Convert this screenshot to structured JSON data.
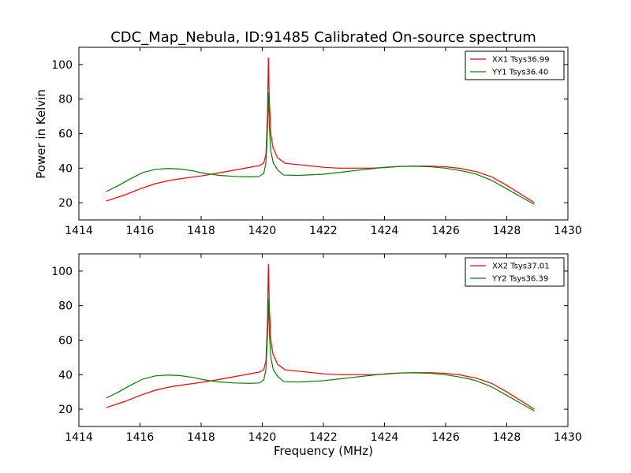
{
  "figure": {
    "title": "CDC_Map_Nebula, ID:91485 Calibrated On-source spectrum",
    "xlabel": "Frequency (MHz)",
    "ylabel": "Power in Kelvin"
  },
  "chart_data": [
    {
      "type": "line",
      "xlim": [
        1414,
        1430
      ],
      "ylim": [
        10,
        110
      ],
      "xticks": [
        1414,
        1416,
        1418,
        1420,
        1422,
        1424,
        1426,
        1428,
        1430
      ],
      "yticks": [
        20,
        40,
        60,
        80,
        100
      ],
      "grid": false,
      "legend": "top-right",
      "series": [
        {
          "name": "XX1 Tsys36.99",
          "color": "#ff0000",
          "points": [
            [
              1414.9,
              21
            ],
            [
              1415.5,
              24.5
            ],
            [
              1416,
              28
            ],
            [
              1416.5,
              31
            ],
            [
              1417,
              33
            ],
            [
              1417.5,
              34.3
            ],
            [
              1418,
              35.5
            ],
            [
              1418.5,
              37
            ],
            [
              1419,
              38.6
            ],
            [
              1419.5,
              40.2
            ],
            [
              1419.9,
              41.5
            ],
            [
              1420.05,
              43
            ],
            [
              1420.12,
              48
            ],
            [
              1420.17,
              70
            ],
            [
              1420.2,
              104
            ],
            [
              1420.23,
              80
            ],
            [
              1420.28,
              60
            ],
            [
              1420.35,
              52
            ],
            [
              1420.5,
              46
            ],
            [
              1420.75,
              42.8
            ],
            [
              1421.2,
              42
            ],
            [
              1422,
              40.5
            ],
            [
              1422.5,
              40
            ],
            [
              1423.5,
              40
            ],
            [
              1424,
              40.3
            ],
            [
              1424.5,
              41
            ],
            [
              1425,
              41.2
            ],
            [
              1425.5,
              41.2
            ],
            [
              1426,
              40.8
            ],
            [
              1426.5,
              39.8
            ],
            [
              1426.7,
              39
            ],
            [
              1427,
              38
            ],
            [
              1427.5,
              35
            ],
            [
              1428,
              30
            ],
            [
              1428.5,
              24.5
            ],
            [
              1428.9,
              20
            ]
          ]
        },
        {
          "name": "YY1 Tsys36.40",
          "color": "#008000",
          "points": [
            [
              1414.9,
              26.5
            ],
            [
              1415.3,
              30
            ],
            [
              1415.7,
              34
            ],
            [
              1416.1,
              37.5
            ],
            [
              1416.5,
              39.3
            ],
            [
              1416.9,
              39.8
            ],
            [
              1417.3,
              39.5
            ],
            [
              1417.7,
              38.5
            ],
            [
              1418.1,
              37
            ],
            [
              1418.6,
              35.8
            ],
            [
              1419.1,
              35.2
            ],
            [
              1419.6,
              35
            ],
            [
              1419.9,
              35.2
            ],
            [
              1420.05,
              37
            ],
            [
              1420.12,
              43
            ],
            [
              1420.17,
              62
            ],
            [
              1420.2,
              84
            ],
            [
              1420.23,
              65
            ],
            [
              1420.28,
              50
            ],
            [
              1420.36,
              43
            ],
            [
              1420.5,
              39
            ],
            [
              1420.7,
              36
            ],
            [
              1421.2,
              35.8
            ],
            [
              1422,
              36.5
            ],
            [
              1422.5,
              37.5
            ],
            [
              1423,
              38.5
            ],
            [
              1423.5,
              39.5
            ],
            [
              1424,
              40.5
            ],
            [
              1424.5,
              41
            ],
            [
              1425,
              41.1
            ],
            [
              1425.5,
              40.8
            ],
            [
              1426,
              40
            ],
            [
              1426.5,
              38.5
            ],
            [
              1426.7,
              37.8
            ],
            [
              1427,
              36.5
            ],
            [
              1427.5,
              33
            ],
            [
              1428,
              28
            ],
            [
              1428.5,
              23
            ],
            [
              1428.9,
              19
            ]
          ]
        }
      ]
    },
    {
      "type": "line",
      "xlim": [
        1414,
        1430
      ],
      "ylim": [
        10,
        110
      ],
      "xticks": [
        1414,
        1416,
        1418,
        1420,
        1422,
        1424,
        1426,
        1428,
        1430
      ],
      "yticks": [
        20,
        40,
        60,
        80,
        100
      ],
      "grid": false,
      "legend": "top-right",
      "series": [
        {
          "name": "XX2 Tsys37.01",
          "color": "#ff0000",
          "points": [
            [
              1414.9,
              21
            ],
            [
              1415.5,
              24.5
            ],
            [
              1416,
              28
            ],
            [
              1416.5,
              31
            ],
            [
              1417,
              33
            ],
            [
              1417.5,
              34.3
            ],
            [
              1418,
              35.5
            ],
            [
              1418.5,
              37
            ],
            [
              1419,
              38.6
            ],
            [
              1419.5,
              40.2
            ],
            [
              1419.9,
              41.5
            ],
            [
              1420.05,
              43
            ],
            [
              1420.12,
              48
            ],
            [
              1420.17,
              70
            ],
            [
              1420.2,
              104
            ],
            [
              1420.23,
              80
            ],
            [
              1420.28,
              60
            ],
            [
              1420.35,
              52
            ],
            [
              1420.5,
              46
            ],
            [
              1420.75,
              42.8
            ],
            [
              1421.2,
              42
            ],
            [
              1422,
              40.5
            ],
            [
              1422.5,
              40
            ],
            [
              1423.5,
              40
            ],
            [
              1424,
              40.3
            ],
            [
              1424.5,
              41
            ],
            [
              1425,
              41.2
            ],
            [
              1425.5,
              41.2
            ],
            [
              1426,
              40.8
            ],
            [
              1426.5,
              39.8
            ],
            [
              1426.7,
              39
            ],
            [
              1427,
              38
            ],
            [
              1427.5,
              35
            ],
            [
              1428,
              30
            ],
            [
              1428.5,
              24.5
            ],
            [
              1428.9,
              20
            ]
          ]
        },
        {
          "name": "YY2 Tsys36.39",
          "color": "#008000",
          "points": [
            [
              1414.9,
              26.5
            ],
            [
              1415.3,
              30
            ],
            [
              1415.7,
              34
            ],
            [
              1416.1,
              37.5
            ],
            [
              1416.5,
              39.3
            ],
            [
              1416.9,
              39.8
            ],
            [
              1417.3,
              39.5
            ],
            [
              1417.7,
              38.5
            ],
            [
              1418.1,
              37
            ],
            [
              1418.6,
              35.8
            ],
            [
              1419.1,
              35.2
            ],
            [
              1419.6,
              35
            ],
            [
              1419.9,
              35.2
            ],
            [
              1420.05,
              37
            ],
            [
              1420.12,
              43
            ],
            [
              1420.17,
              62
            ],
            [
              1420.2,
              84
            ],
            [
              1420.23,
              65
            ],
            [
              1420.28,
              50
            ],
            [
              1420.36,
              43
            ],
            [
              1420.5,
              39
            ],
            [
              1420.7,
              36
            ],
            [
              1421.2,
              35.8
            ],
            [
              1422,
              36.5
            ],
            [
              1422.5,
              37.5
            ],
            [
              1423,
              38.5
            ],
            [
              1423.5,
              39.5
            ],
            [
              1424,
              40.5
            ],
            [
              1424.5,
              41
            ],
            [
              1425,
              41.1
            ],
            [
              1425.5,
              40.8
            ],
            [
              1426,
              40
            ],
            [
              1426.5,
              38.5
            ],
            [
              1426.7,
              37.8
            ],
            [
              1427,
              36.5
            ],
            [
              1427.5,
              33
            ],
            [
              1428,
              28
            ],
            [
              1428.5,
              23
            ],
            [
              1428.9,
              19
            ]
          ]
        }
      ]
    }
  ]
}
